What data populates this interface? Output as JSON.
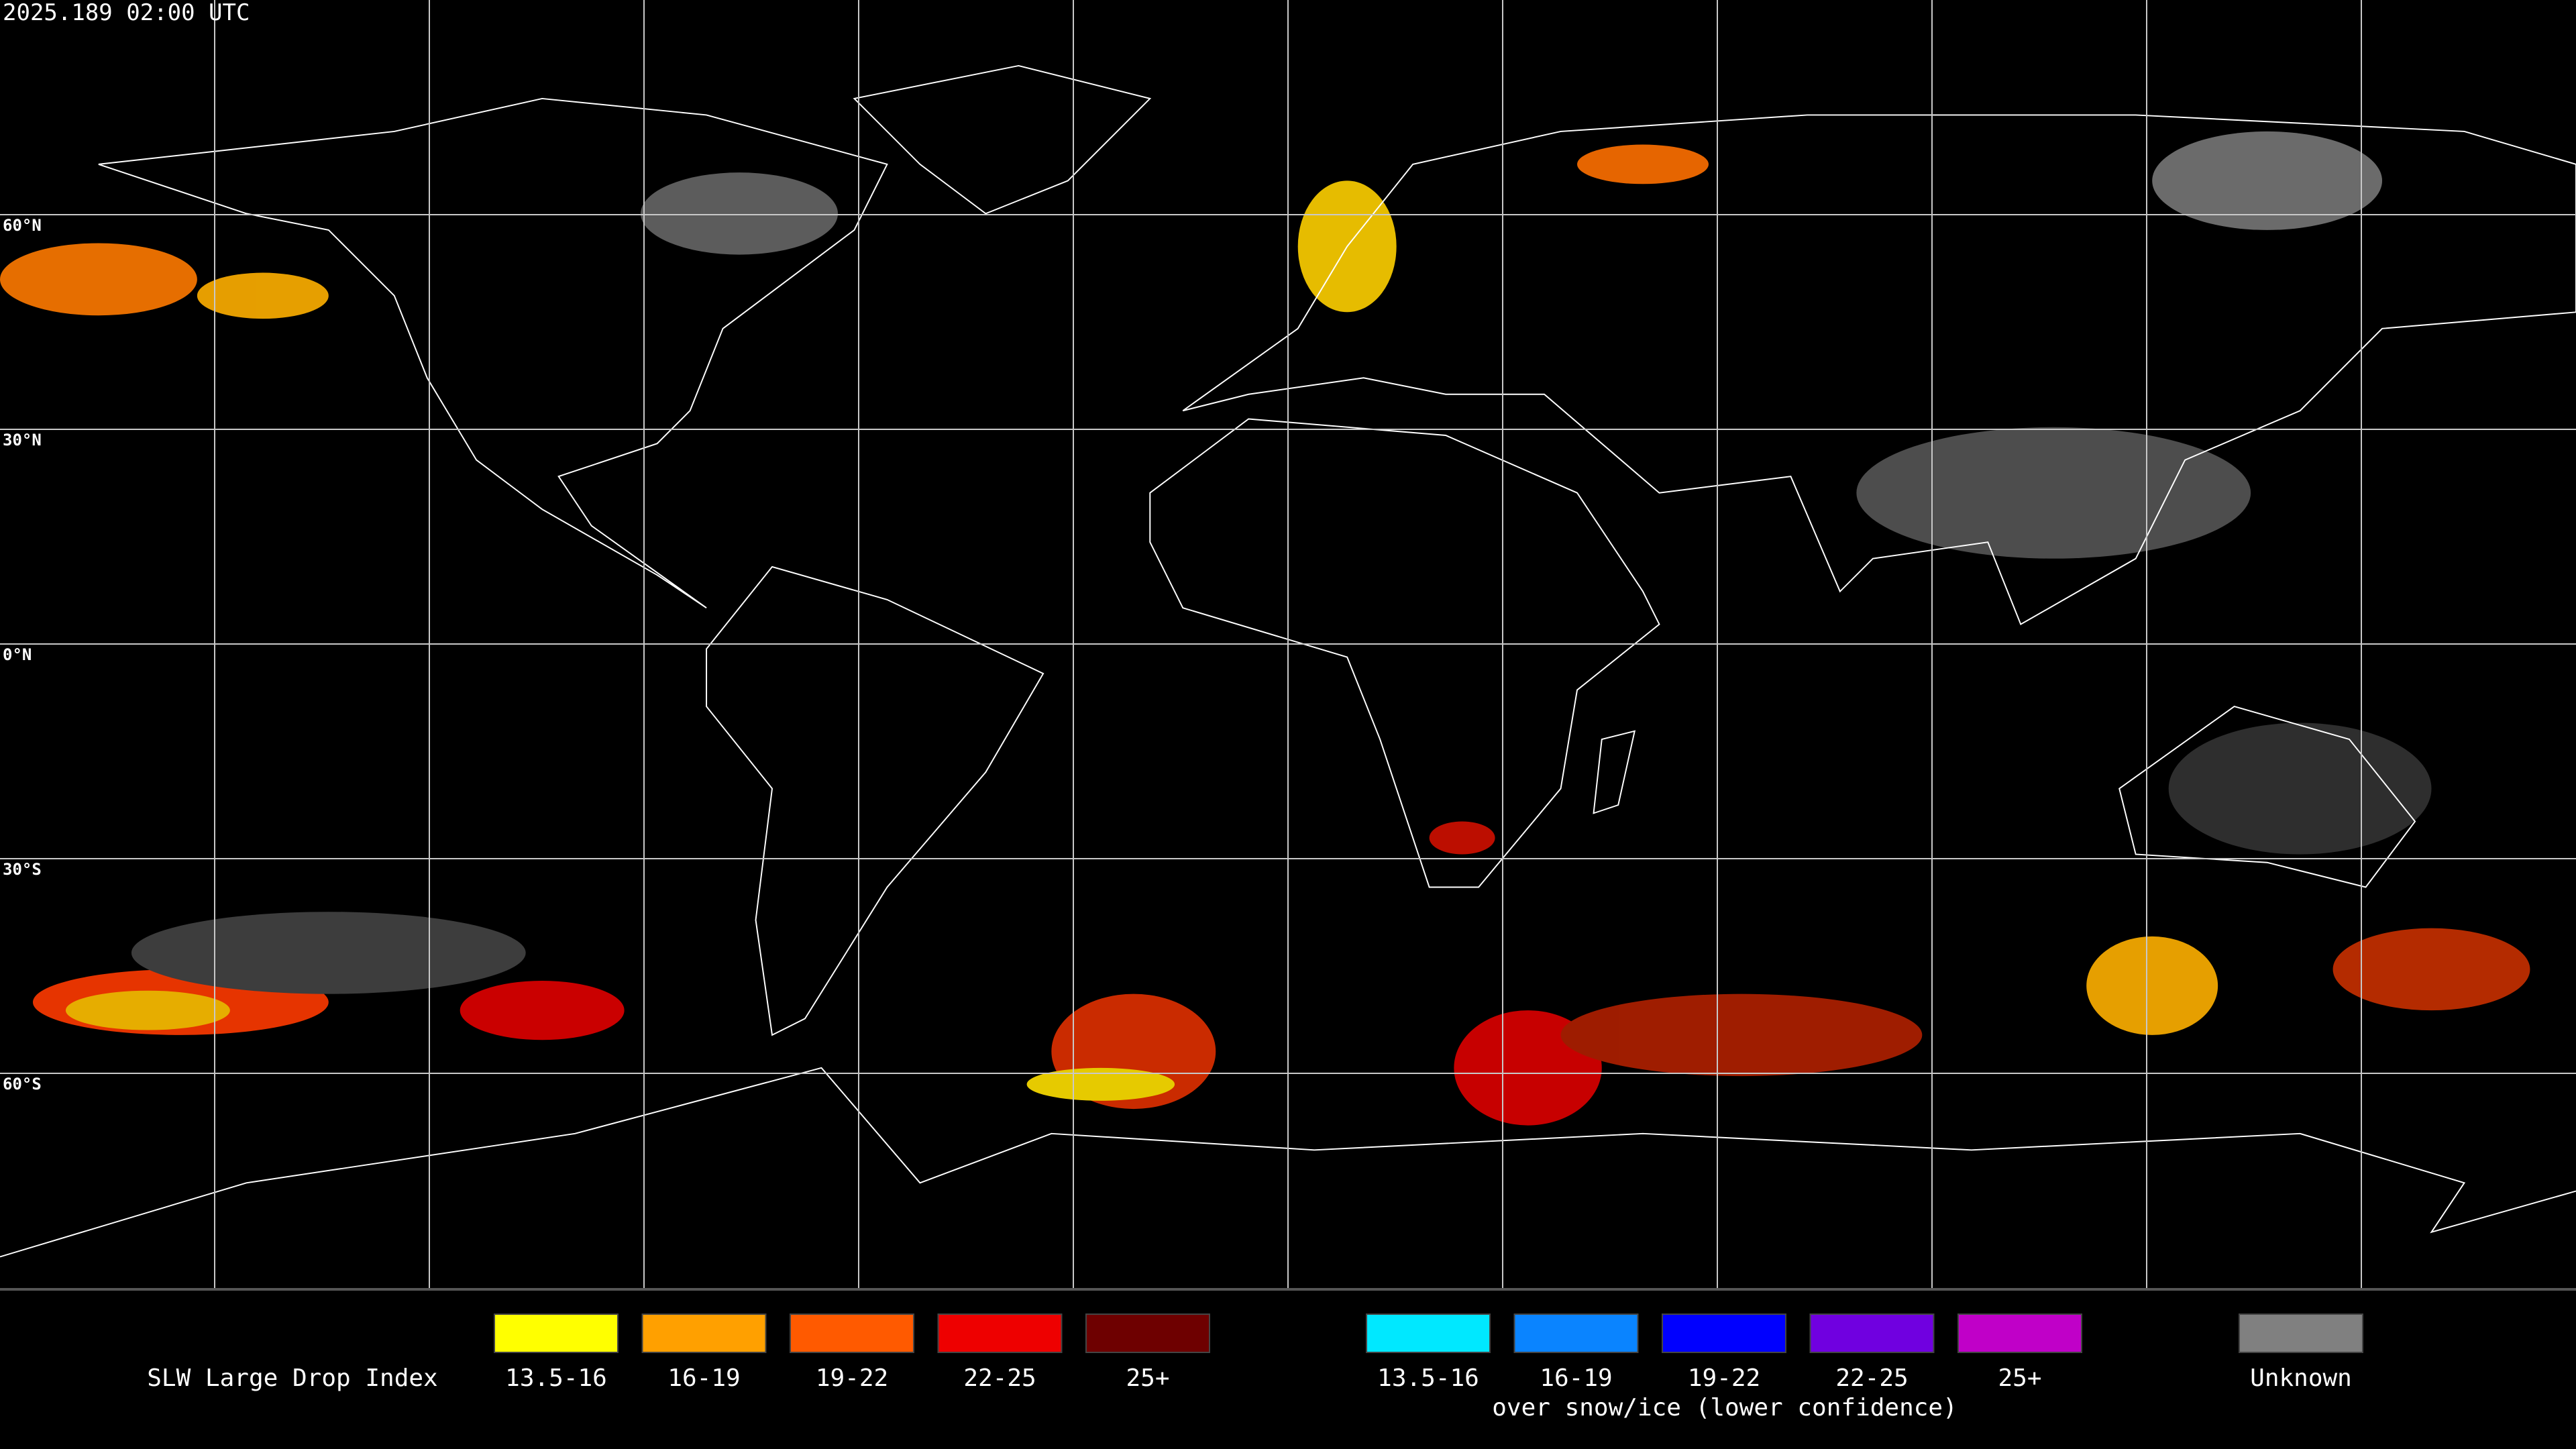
{
  "header": {
    "timestamp": "2025.189 02:00 UTC"
  },
  "grid": {
    "latitude_labels": [
      "60°N",
      "30°N",
      "0°N",
      "30°S",
      "60°S"
    ]
  },
  "legend": {
    "title": "SLW Large Drop Index",
    "primary": [
      {
        "label": "13.5-16",
        "color": "#ffff00"
      },
      {
        "label": "16-19",
        "color": "#ffa000"
      },
      {
        "label": "19-22",
        "color": "#ff5a00"
      },
      {
        "label": "22-25",
        "color": "#ee0000"
      },
      {
        "label": "25+",
        "color": "#6e0000"
      }
    ],
    "snow_ice": [
      {
        "label": "13.5-16",
        "color": "#00e8ff"
      },
      {
        "label": "16-19",
        "color": "#0a84ff"
      },
      {
        "label": "19-22",
        "color": "#0000ff"
      },
      {
        "label": "22-25",
        "color": "#7000e0"
      },
      {
        "label": "25+",
        "color": "#c000c8"
      }
    ],
    "snow_ice_caption": "over snow/ice (lower confidence)",
    "unknown": {
      "label": "Unknown",
      "color": "#808080"
    }
  }
}
